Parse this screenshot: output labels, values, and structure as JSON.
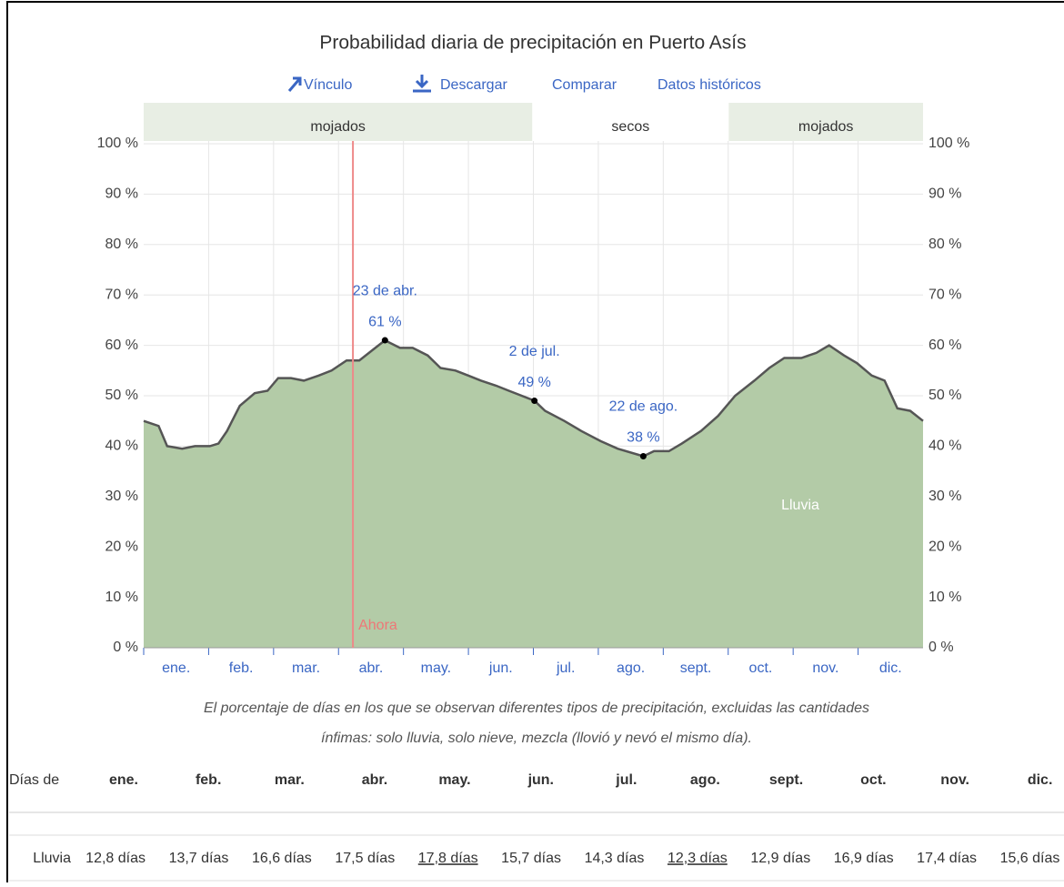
{
  "chart_data": {
    "type": "area",
    "title": "Probabilidad diaria de precipitación en Puerto Asís",
    "links": [
      "Vínculo",
      "Descargar",
      "Comparar",
      "Datos históricos"
    ],
    "seasons": [
      {
        "label": "mojados",
        "start": 0,
        "end": 182,
        "color": "#e8eee4"
      },
      {
        "label": "secos",
        "start": 182,
        "end": 274,
        "color": "#ffffff"
      },
      {
        "label": "mojados",
        "start": 274,
        "end": 365,
        "color": "#e8eee4"
      }
    ],
    "categories": [
      "ene.",
      "feb.",
      "mar.",
      "abr.",
      "may.",
      "jun.",
      "jul.",
      "ago.",
      "sept.",
      "oct.",
      "nov.",
      "dic."
    ],
    "xlim": [
      0,
      365
    ],
    "ylim": [
      0,
      100
    ],
    "yticks": [
      {
        "value": 0,
        "label": "0 %"
      },
      {
        "value": 10,
        "label": "10 %"
      },
      {
        "value": 20,
        "label": "20 %"
      },
      {
        "value": 30,
        "label": "30 %"
      },
      {
        "value": 40,
        "label": "40 %"
      },
      {
        "value": 50,
        "label": "50 %"
      },
      {
        "value": 60,
        "label": "60 %"
      },
      {
        "value": 70,
        "label": "70 %"
      },
      {
        "value": 80,
        "label": "80 %"
      },
      {
        "value": 90,
        "label": "90 %"
      },
      {
        "value": 100,
        "label": "100 %"
      }
    ],
    "grid": true,
    "x": [
      0,
      7,
      11,
      18,
      24,
      31,
      35,
      39,
      45,
      52,
      58,
      63,
      69,
      75,
      82,
      88,
      95,
      101,
      107,
      113,
      120,
      126,
      133,
      139,
      146,
      152,
      158,
      165,
      171,
      183,
      188,
      197,
      205,
      214,
      222,
      234,
      239,
      246,
      252,
      261,
      269,
      277,
      286,
      293,
      300,
      308,
      315,
      321,
      328,
      334,
      341,
      347,
      353,
      359,
      365
    ],
    "series": [
      {
        "name": "Lluvia",
        "color": "#b3cba7",
        "values": [
          45,
          44,
          40,
          39.5,
          40,
          40,
          40.5,
          43,
          48,
          50.5,
          51,
          53.5,
          53.5,
          53,
          54,
          55,
          57,
          57,
          59,
          61,
          59.5,
          59.5,
          58,
          55.5,
          55,
          54,
          53,
          52,
          51,
          49,
          47,
          45,
          43,
          41,
          39.5,
          38,
          39,
          39,
          40.5,
          43,
          46,
          50,
          53,
          55.5,
          57.5,
          57.5,
          58.5,
          60,
          58,
          56.5,
          54,
          53,
          47.5,
          47,
          45
        ]
      }
    ],
    "now": {
      "label": "Ahora",
      "x": 98
    },
    "annotations": [
      {
        "date": "23 de abr.",
        "x": 113,
        "value": 61,
        "label": "61 %"
      },
      {
        "date": "2 de jul.",
        "x": 183,
        "value": 49,
        "label": "49 %"
      },
      {
        "date": "22 de ago.",
        "x": 234,
        "value": 38,
        "label": "38 %"
      }
    ],
    "caption": [
      "El porcentaje de días en los que se observan diferentes tipos de precipitación, excluidas las cantidades",
      "ínfimas: solo lluvia, solo nieve, mezcla (llovió y nevó el mismo día)."
    ]
  },
  "table": {
    "header": [
      "Días de",
      "ene.",
      "feb.",
      "mar.",
      "abr.",
      "may.",
      "jun.",
      "jul.",
      "ago.",
      "sept.",
      "oct.",
      "nov.",
      "dic."
    ],
    "rows": [
      [
        "Lluvia",
        "12,8 días",
        "13,7 días",
        "16,6 días",
        "17,5 días",
        "17,8 días",
        "15,7 días",
        "14,3 días",
        "12,3 días",
        "12,9 días",
        "16,9 días",
        "17,4 días",
        "15,6 días"
      ]
    ],
    "underlined": [
      5,
      8
    ]
  }
}
